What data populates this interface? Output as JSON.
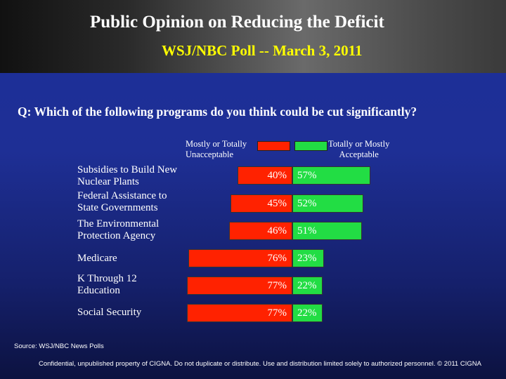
{
  "header": {
    "title": "Public Opinion on Reducing the Deficit",
    "subtitle": "WSJ/NBC Poll -- March 3, 2011"
  },
  "question": "Q: Which of the following programs do you think could be cut significantly?",
  "colors": {
    "unacceptable": "#ff2200",
    "acceptable": "#22dd44"
  },
  "chart_data": {
    "type": "bar",
    "categories": [
      "Subsidies to Build New\n  Nuclear Plants",
      "Federal Assistance to\n  State Governments",
      "The Environmental\n  Protection Agency",
      "Medicare",
      "K Through 12\n  Education",
      "Social Security"
    ],
    "series": [
      {
        "name": "Mostly or Totally\nUnacceptable",
        "values": [
          40,
          45,
          46,
          76,
          77,
          77
        ],
        "labels": [
          "40%",
          "45%",
          "46%",
          "76%",
          "77%",
          "77%"
        ]
      },
      {
        "name": "Totally or Mostly\nAcceptable",
        "values": [
          57,
          52,
          51,
          23,
          22,
          22
        ],
        "labels": [
          "57%",
          "52%",
          "51%",
          "23%",
          "22%",
          "22%"
        ]
      }
    ],
    "legend": "top"
  },
  "source": "Source:  WSJ/NBC News Polls",
  "footer": "Confidential, unpublished property of CIGNA. Do not duplicate or distribute. Use and distribution limited solely to authorized personnel. © 2011 CIGNA"
}
